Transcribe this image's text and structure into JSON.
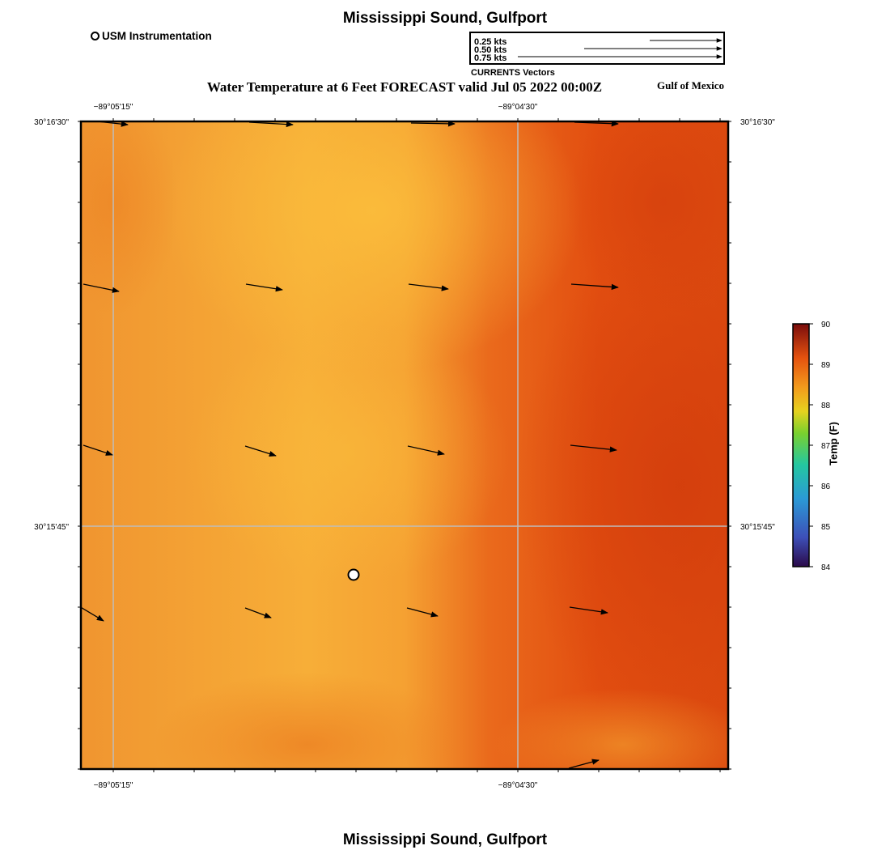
{
  "header": {
    "title": "Mississippi Sound, Gulfport",
    "subtitle": "Water Temperature at 6 Feet FORECAST valid Jul 05 2022 00:00Z",
    "region": "Gulf of Mexico"
  },
  "footer": {
    "title": "Mississippi Sound, Gulfport"
  },
  "legend": {
    "instrument_label": "USM Instrumentation",
    "vector_scale": [
      {
        "label": "0.25 kts",
        "speed_kts": 0.25
      },
      {
        "label": "0.50 kts",
        "speed_kts": 0.5
      },
      {
        "label": "0.75 kts",
        "speed_kts": 0.75
      }
    ],
    "vector_caption": "CURRENTS Vectors"
  },
  "map": {
    "lon_ticks": [
      "−89°05'15\"",
      "−89°04'30\""
    ],
    "lat_ticks": [
      "30°16'30\"",
      "30°15'45\""
    ],
    "grid": true,
    "field": "water temperature",
    "palette_note": "orange to red-orange, warmer toward east"
  },
  "colorbar": {
    "label": "Temp (F)",
    "ticks": [
      "90",
      "89",
      "88",
      "87",
      "86",
      "85",
      "84"
    ],
    "min": 84,
    "max": 90,
    "colors": [
      "#2b0a4a",
      "#3d4fb8",
      "#2b9ad6",
      "#24c7a0",
      "#7ad12e",
      "#e6d21f",
      "#f39a1c",
      "#e4520f",
      "#7a0c0c"
    ]
  }
}
